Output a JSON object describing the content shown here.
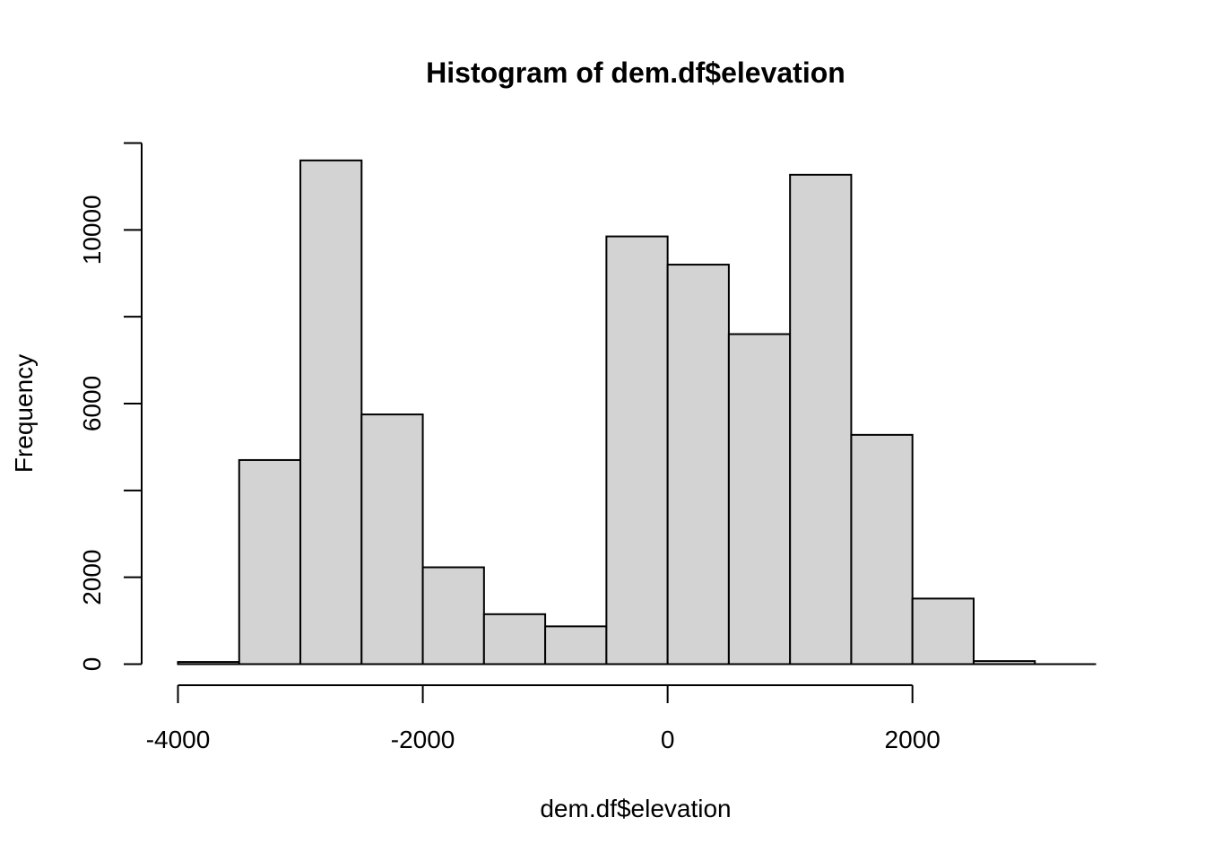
{
  "chart_data": {
    "type": "bar",
    "title": "Histogram of dem.df$elevation",
    "xlabel": "dem.df$elevation",
    "ylabel": "Frequency",
    "bins": [
      {
        "from": -4000,
        "to": -3500,
        "count": 50
      },
      {
        "from": -3500,
        "to": -3000,
        "count": 4700
      },
      {
        "from": -3000,
        "to": -2500,
        "count": 11600
      },
      {
        "from": -2500,
        "to": -2000,
        "count": 5750
      },
      {
        "from": -2000,
        "to": -1500,
        "count": 2230
      },
      {
        "from": -1500,
        "to": -1000,
        "count": 1150
      },
      {
        "from": -1000,
        "to": -500,
        "count": 870
      },
      {
        "from": -500,
        "to": 0,
        "count": 9850
      },
      {
        "from": 0,
        "to": 500,
        "count": 9200
      },
      {
        "from": 500,
        "to": 1000,
        "count": 7600
      },
      {
        "from": 1000,
        "to": 1500,
        "count": 11270
      },
      {
        "from": 1500,
        "to": 2000,
        "count": 5280
      },
      {
        "from": 2000,
        "to": 2500,
        "count": 1510
      },
      {
        "from": 2500,
        "to": 3000,
        "count": 70
      }
    ],
    "xlim": [
      -4000,
      3500
    ],
    "ylim": [
      0,
      12000
    ],
    "x_ticks": [
      -4000,
      -2000,
      0,
      2000
    ],
    "x_tick_labels": [
      "-4000",
      "-2000",
      "0",
      "2000"
    ],
    "y_ticks": [
      0,
      2000,
      4000,
      6000,
      8000,
      10000,
      12000
    ],
    "y_tick_labels": [
      "0",
      "2000",
      "",
      "6000",
      "",
      "10000",
      ""
    ],
    "bar_fill": "#d3d3d3",
    "bar_stroke": "#000000",
    "grid": false
  }
}
